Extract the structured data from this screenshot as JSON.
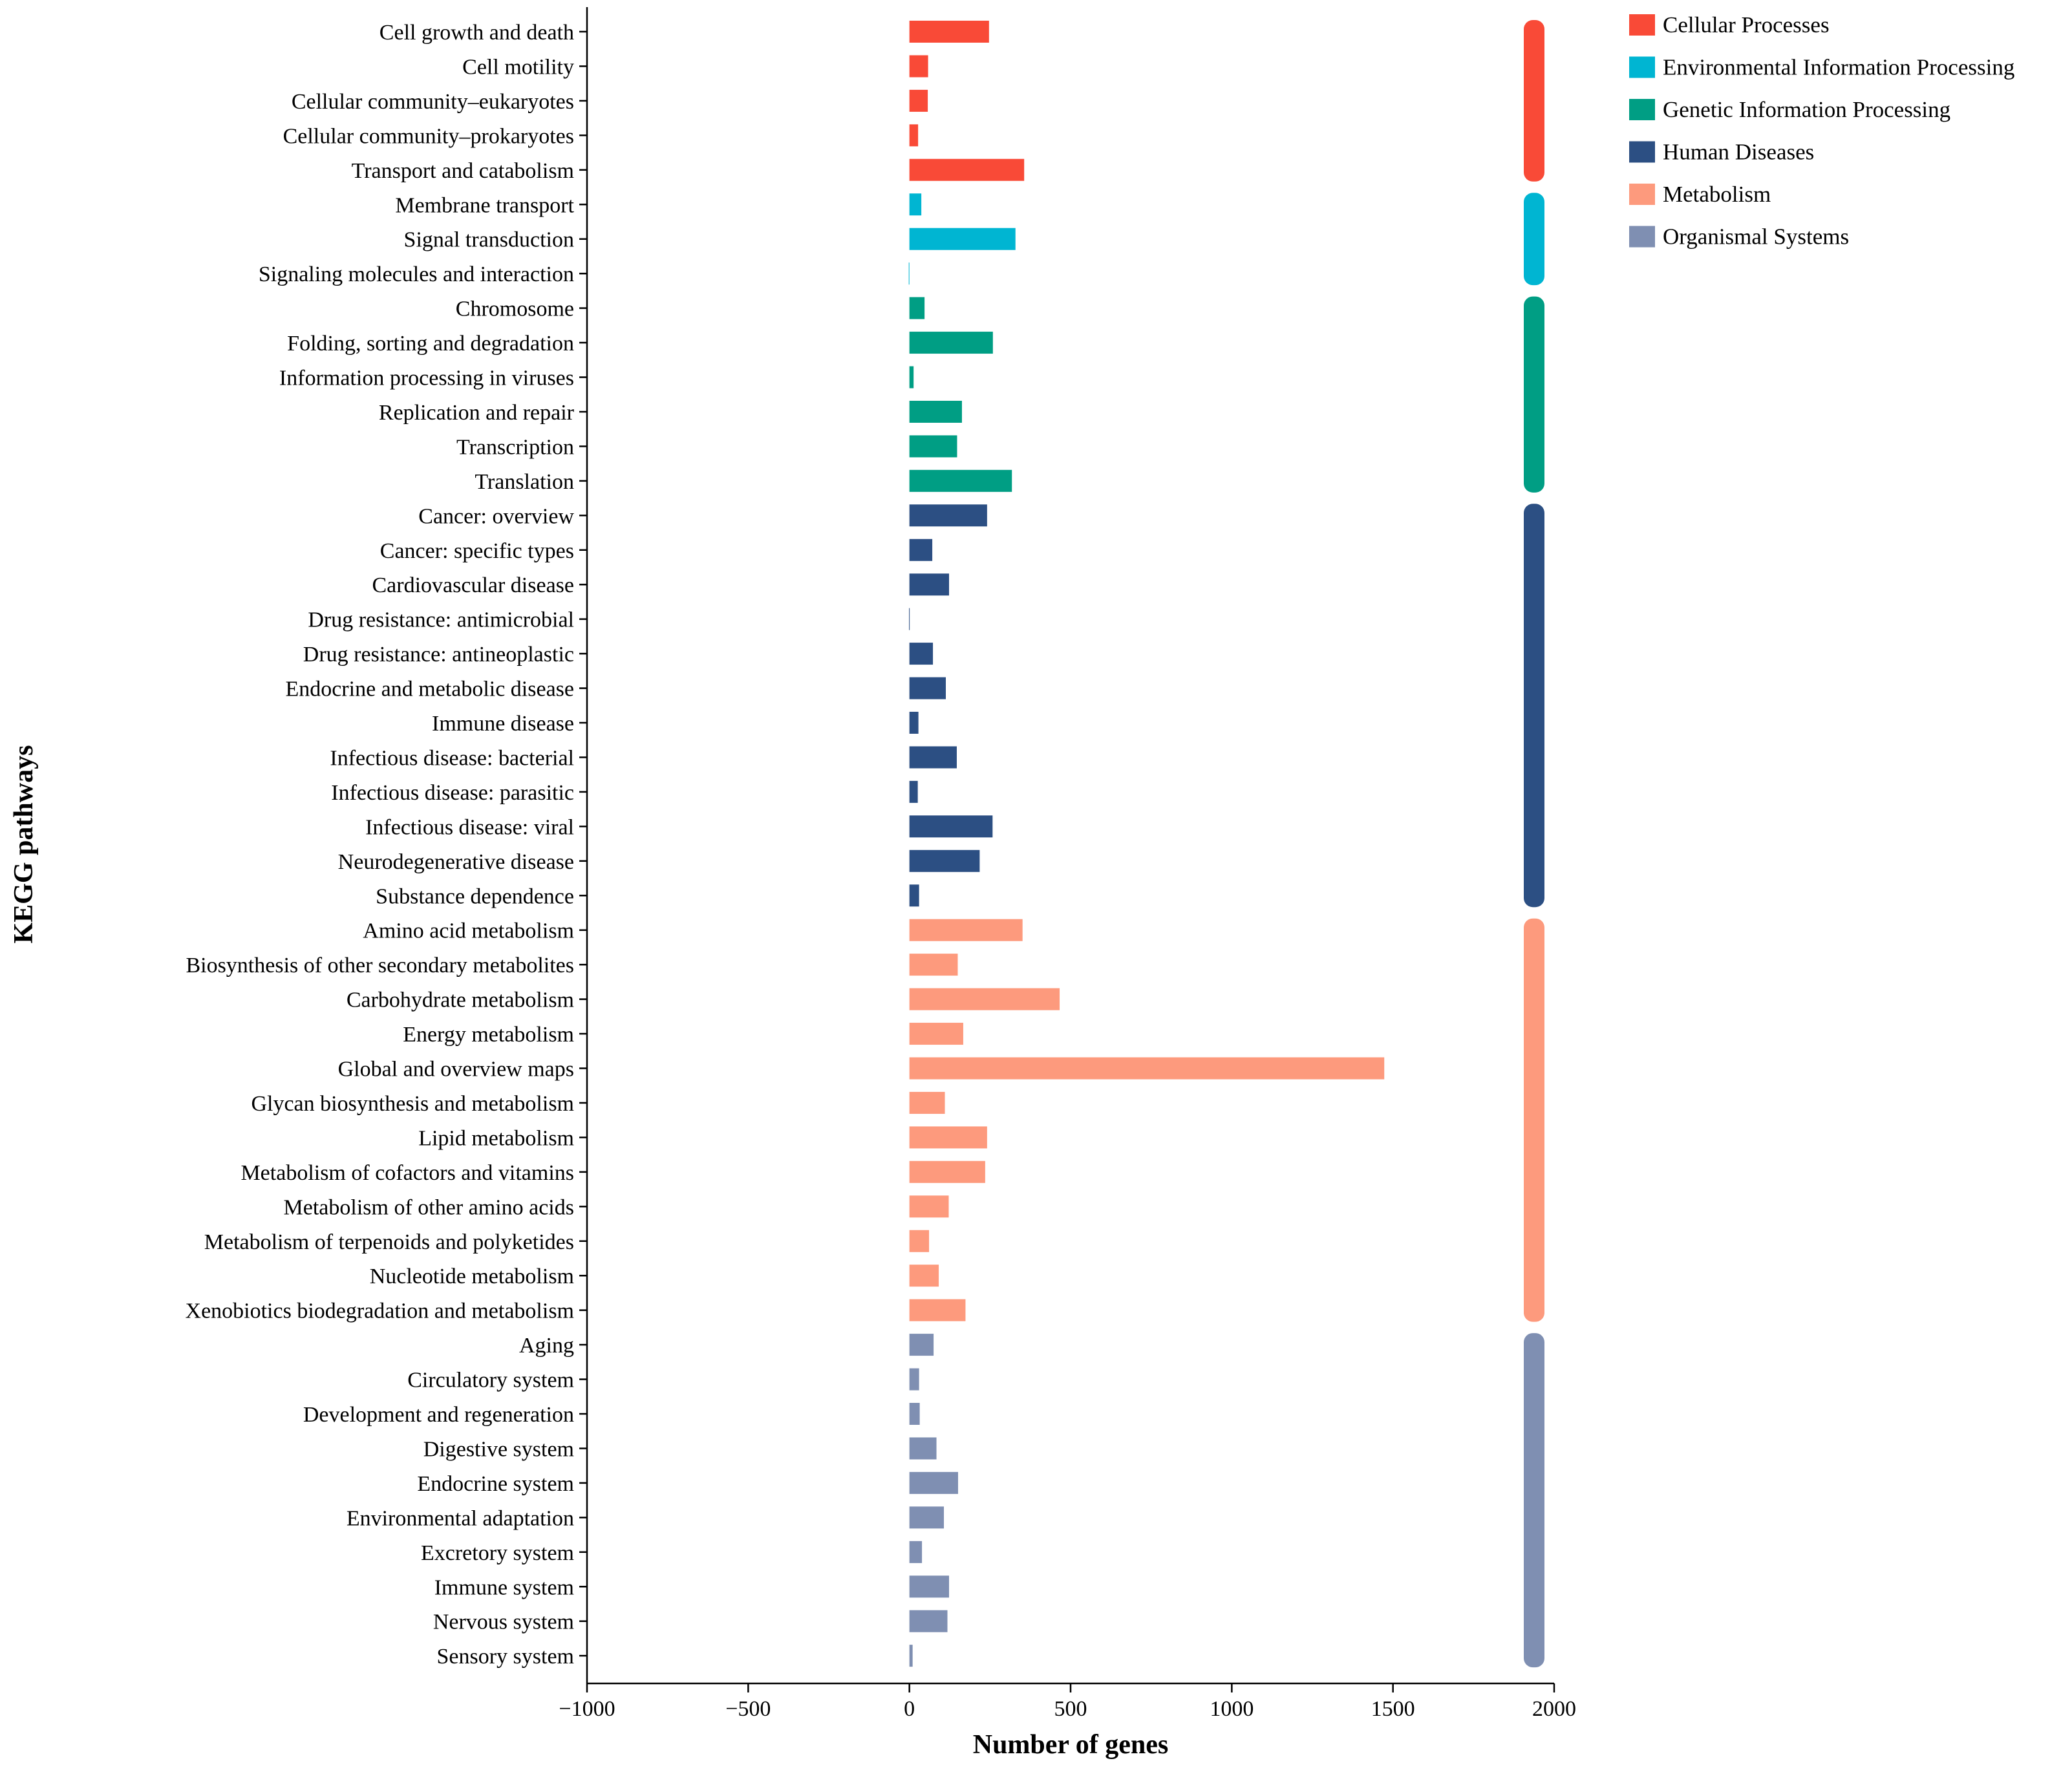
{
  "chart_data": {
    "type": "bar",
    "orientation": "horizontal",
    "xlabel": "Number of genes",
    "ylabel": "KEGG pathways",
    "xlim": [
      -1000,
      2000
    ],
    "xticks": [
      -1000,
      -500,
      0,
      500,
      1000,
      1500,
      2000
    ],
    "xtick_labels": [
      "−1000",
      "−500",
      "0",
      "500",
      "1000",
      "1500",
      "2000"
    ],
    "grid": false,
    "legend_position": "top-right",
    "groups": [
      {
        "name": "Cellular Processes",
        "color": "#F94A37"
      },
      {
        "name": "Environmental Information Processing",
        "color": "#00B5D2"
      },
      {
        "name": "Genetic Information Processing",
        "color": "#009E84"
      },
      {
        "name": "Human Diseases",
        "color": "#2C4F83"
      },
      {
        "name": "Metabolism",
        "color": "#FD9A7D"
      },
      {
        "name": "Organismal Systems",
        "color": "#7F8FB2"
      }
    ],
    "bars": [
      {
        "label": "Cell growth and death",
        "value": 247,
        "group": 0
      },
      {
        "label": "Cell motility",
        "value": 58,
        "group": 0
      },
      {
        "label": "Cellular community–eukaryotes",
        "value": 57,
        "group": 0
      },
      {
        "label": "Cellular community–prokaryotes",
        "value": 27,
        "group": 0
      },
      {
        "label": "Transport and catabolism",
        "value": 356,
        "group": 0
      },
      {
        "label": "Membrane transport",
        "value": 37,
        "group": 1
      },
      {
        "label": "Signal transduction",
        "value": 329,
        "group": 1
      },
      {
        "label": "Signaling molecules and interaction",
        "value": -2,
        "group": 1
      },
      {
        "label": "Chromosome",
        "value": 47,
        "group": 2
      },
      {
        "label": "Folding, sorting and degradation",
        "value": 259,
        "group": 2
      },
      {
        "label": "Information processing in viruses",
        "value": 13,
        "group": 2
      },
      {
        "label": "Replication and repair",
        "value": 163,
        "group": 2
      },
      {
        "label": "Transcription",
        "value": 148,
        "group": 2
      },
      {
        "label": "Translation",
        "value": 318,
        "group": 2
      },
      {
        "label": "Cancer: overview",
        "value": 241,
        "group": 3
      },
      {
        "label": "Cancer: specific types",
        "value": 71,
        "group": 3
      },
      {
        "label": "Cardiovascular disease",
        "value": 123,
        "group": 3
      },
      {
        "label": "Drug resistance: antimicrobial",
        "value": -1,
        "group": 3
      },
      {
        "label": "Drug resistance: antineoplastic",
        "value": 73,
        "group": 3
      },
      {
        "label": "Endocrine and metabolic disease",
        "value": 113,
        "group": 3
      },
      {
        "label": "Immune disease",
        "value": 28,
        "group": 3
      },
      {
        "label": "Infectious disease: bacterial",
        "value": 147,
        "group": 3
      },
      {
        "label": "Infectious disease: parasitic",
        "value": 26,
        "group": 3
      },
      {
        "label": "Infectious disease: viral",
        "value": 258,
        "group": 3
      },
      {
        "label": "Neurodegenerative disease",
        "value": 218,
        "group": 3
      },
      {
        "label": "Substance dependence",
        "value": 30,
        "group": 3
      },
      {
        "label": "Amino acid metabolism",
        "value": 351,
        "group": 4
      },
      {
        "label": "Biosynthesis of other secondary metabolites",
        "value": 150,
        "group": 4
      },
      {
        "label": "Carbohydrate metabolism",
        "value": 466,
        "group": 4
      },
      {
        "label": "Energy metabolism",
        "value": 167,
        "group": 4
      },
      {
        "label": "Global and overview maps",
        "value": 1473,
        "group": 4
      },
      {
        "label": "Glycan biosynthesis and metabolism",
        "value": 110,
        "group": 4
      },
      {
        "label": "Lipid metabolism",
        "value": 241,
        "group": 4
      },
      {
        "label": "Metabolism of cofactors and vitamins",
        "value": 235,
        "group": 4
      },
      {
        "label": "Metabolism of other amino acids",
        "value": 122,
        "group": 4
      },
      {
        "label": "Metabolism of terpenoids and polyketides",
        "value": 61,
        "group": 4
      },
      {
        "label": "Nucleotide metabolism",
        "value": 91,
        "group": 4
      },
      {
        "label": "Xenobiotics biodegradation and metabolism",
        "value": 174,
        "group": 4
      },
      {
        "label": "Aging",
        "value": 75,
        "group": 5
      },
      {
        "label": "Circulatory system",
        "value": 30,
        "group": 5
      },
      {
        "label": "Development and regeneration",
        "value": 32,
        "group": 5
      },
      {
        "label": "Digestive system",
        "value": 84,
        "group": 5
      },
      {
        "label": "Endocrine system",
        "value": 151,
        "group": 5
      },
      {
        "label": "Environmental adaptation",
        "value": 107,
        "group": 5
      },
      {
        "label": "Excretory system",
        "value": 39,
        "group": 5
      },
      {
        "label": "Immune system",
        "value": 123,
        "group": 5
      },
      {
        "label": "Nervous system",
        "value": 118,
        "group": 5
      },
      {
        "label": "Sensory system",
        "value": 10,
        "group": 5
      }
    ]
  }
}
